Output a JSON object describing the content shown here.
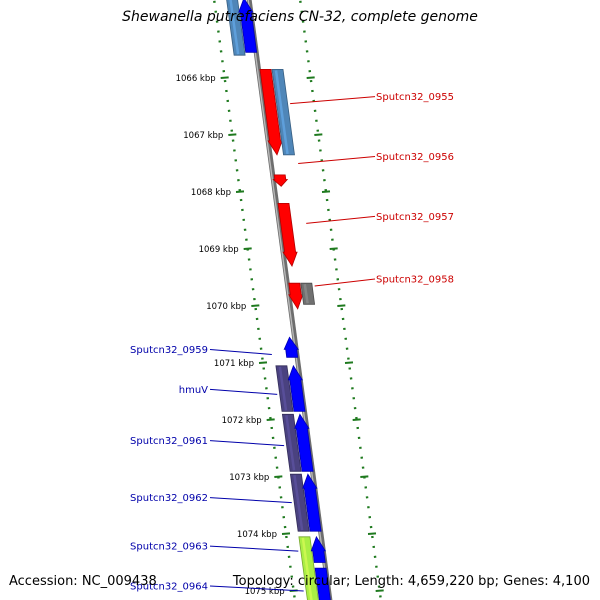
{
  "title": "Shewanella putrefaciens CN-32, complete genome",
  "footer": {
    "accession": "Accession: NC_009438",
    "summary": "Topology: circular; Length: 4,659,220 bp; Genes: 4,100"
  },
  "colors": {
    "backbone": "#8a8a8a",
    "tick": "#1f7a1f",
    "label_reverse": "#cc0000",
    "label_forward": "#0000aa",
    "cds_red": "#ff0000",
    "cds_blue": "#0000ff",
    "cds_steel": "#4f86b8",
    "cds_slate": "#4a4280",
    "cds_grey": "#707070",
    "cds_lime": "#aaee44"
  },
  "map": {
    "kbp_start": 1065,
    "kbp_end": 1075.5,
    "ticks": [
      {
        "kbp": 1066,
        "label": "1066 kbp"
      },
      {
        "kbp": 1067,
        "label": "1067 kbp"
      },
      {
        "kbp": 1068,
        "label": "1068 kbp"
      },
      {
        "kbp": 1069,
        "label": "1069 kbp"
      },
      {
        "kbp": 1070,
        "label": "1070 kbp"
      },
      {
        "kbp": 1071,
        "label": "1071 kbp"
      },
      {
        "kbp": 1072,
        "label": "1072 kbp"
      },
      {
        "kbp": 1073,
        "label": "1073 kbp"
      },
      {
        "kbp": 1074,
        "label": "1074 kbp"
      },
      {
        "kbp": 1075,
        "label": "1075 kbp"
      }
    ],
    "features": [
      {
        "lane": -2,
        "start": 1064.6,
        "end": 1065.6,
        "color": "cds_steel",
        "arrow": false
      },
      {
        "lane": -1,
        "start": 1064.6,
        "end": 1065.55,
        "color": "cds_blue",
        "arrow": true,
        "dir": "up"
      },
      {
        "lane": 1,
        "start": 1065.85,
        "end": 1067.35,
        "color": "cds_red",
        "arrow": true,
        "dir": "down"
      },
      {
        "lane": 2,
        "start": 1065.85,
        "end": 1067.35,
        "color": "cds_steel",
        "arrow": false
      },
      {
        "lane": 1,
        "start": 1067.7,
        "end": 1067.9,
        "color": "cds_red",
        "arrow": true,
        "dir": "down"
      },
      {
        "lane": 1,
        "start": 1068.2,
        "end": 1069.3,
        "color": "cds_red",
        "arrow": true,
        "dir": "down"
      },
      {
        "lane": 1,
        "start": 1069.6,
        "end": 1070.05,
        "color": "cds_red",
        "arrow": true,
        "dir": "down"
      },
      {
        "lane": 2,
        "start": 1069.6,
        "end": 1069.97,
        "color": "cds_grey",
        "arrow": false
      },
      {
        "lane": -1,
        "start": 1070.55,
        "end": 1070.9,
        "color": "cds_blue",
        "arrow": true,
        "dir": "up"
      },
      {
        "lane": -2,
        "start": 1071.05,
        "end": 1071.85,
        "color": "cds_slate",
        "arrow": false
      },
      {
        "lane": -1,
        "start": 1071.05,
        "end": 1071.85,
        "color": "cds_blue",
        "arrow": true,
        "dir": "up"
      },
      {
        "lane": -2,
        "start": 1071.9,
        "end": 1072.9,
        "color": "cds_slate",
        "arrow": false
      },
      {
        "lane": -1,
        "start": 1071.9,
        "end": 1072.9,
        "color": "cds_blue",
        "arrow": true,
        "dir": "up"
      },
      {
        "lane": -2,
        "start": 1072.95,
        "end": 1073.95,
        "color": "cds_slate",
        "arrow": false
      },
      {
        "lane": -1,
        "start": 1072.95,
        "end": 1073.95,
        "color": "cds_blue",
        "arrow": true,
        "dir": "up"
      },
      {
        "lane": -2,
        "start": 1074.05,
        "end": 1075.6,
        "color": "cds_lime",
        "arrow": false
      },
      {
        "lane": -1,
        "start": 1074.05,
        "end": 1074.5,
        "color": "cds_blue",
        "arrow": true,
        "dir": "up"
      },
      {
        "lane": -1,
        "start": 1074.6,
        "end": 1075.6,
        "color": "cds_blue",
        "arrow": false
      }
    ],
    "gene_labels": [
      {
        "text": "Sputcn32_0955",
        "side": "right",
        "kbp": 1066.45,
        "lane": 2,
        "color": "label_reverse"
      },
      {
        "text": "Sputcn32_0956",
        "side": "right",
        "kbp": 1067.5,
        "lane": 2,
        "color": "label_reverse"
      },
      {
        "text": "Sputcn32_0957",
        "side": "right",
        "kbp": 1068.55,
        "lane": 2,
        "color": "label_reverse"
      },
      {
        "text": "Sputcn32_0958",
        "side": "right",
        "kbp": 1069.65,
        "lane": 2,
        "color": "label_reverse"
      },
      {
        "text": "Sputcn32_0959",
        "side": "left",
        "kbp": 1070.85,
        "lane": -2,
        "color": "label_forward"
      },
      {
        "text": "hmuV",
        "side": "left",
        "kbp": 1071.55,
        "lane": -2,
        "color": "label_forward"
      },
      {
        "text": "Sputcn32_0961",
        "side": "left",
        "kbp": 1072.45,
        "lane": -2,
        "color": "label_forward"
      },
      {
        "text": "Sputcn32_0962",
        "side": "left",
        "kbp": 1073.45,
        "lane": -2,
        "color": "label_forward"
      },
      {
        "text": "Sputcn32_0963",
        "side": "left",
        "kbp": 1074.3,
        "lane": -2,
        "color": "label_forward"
      },
      {
        "text": "Sputcn32_0964",
        "side": "left",
        "kbp": 1075.0,
        "lane": -2,
        "color": "label_forward"
      }
    ]
  }
}
